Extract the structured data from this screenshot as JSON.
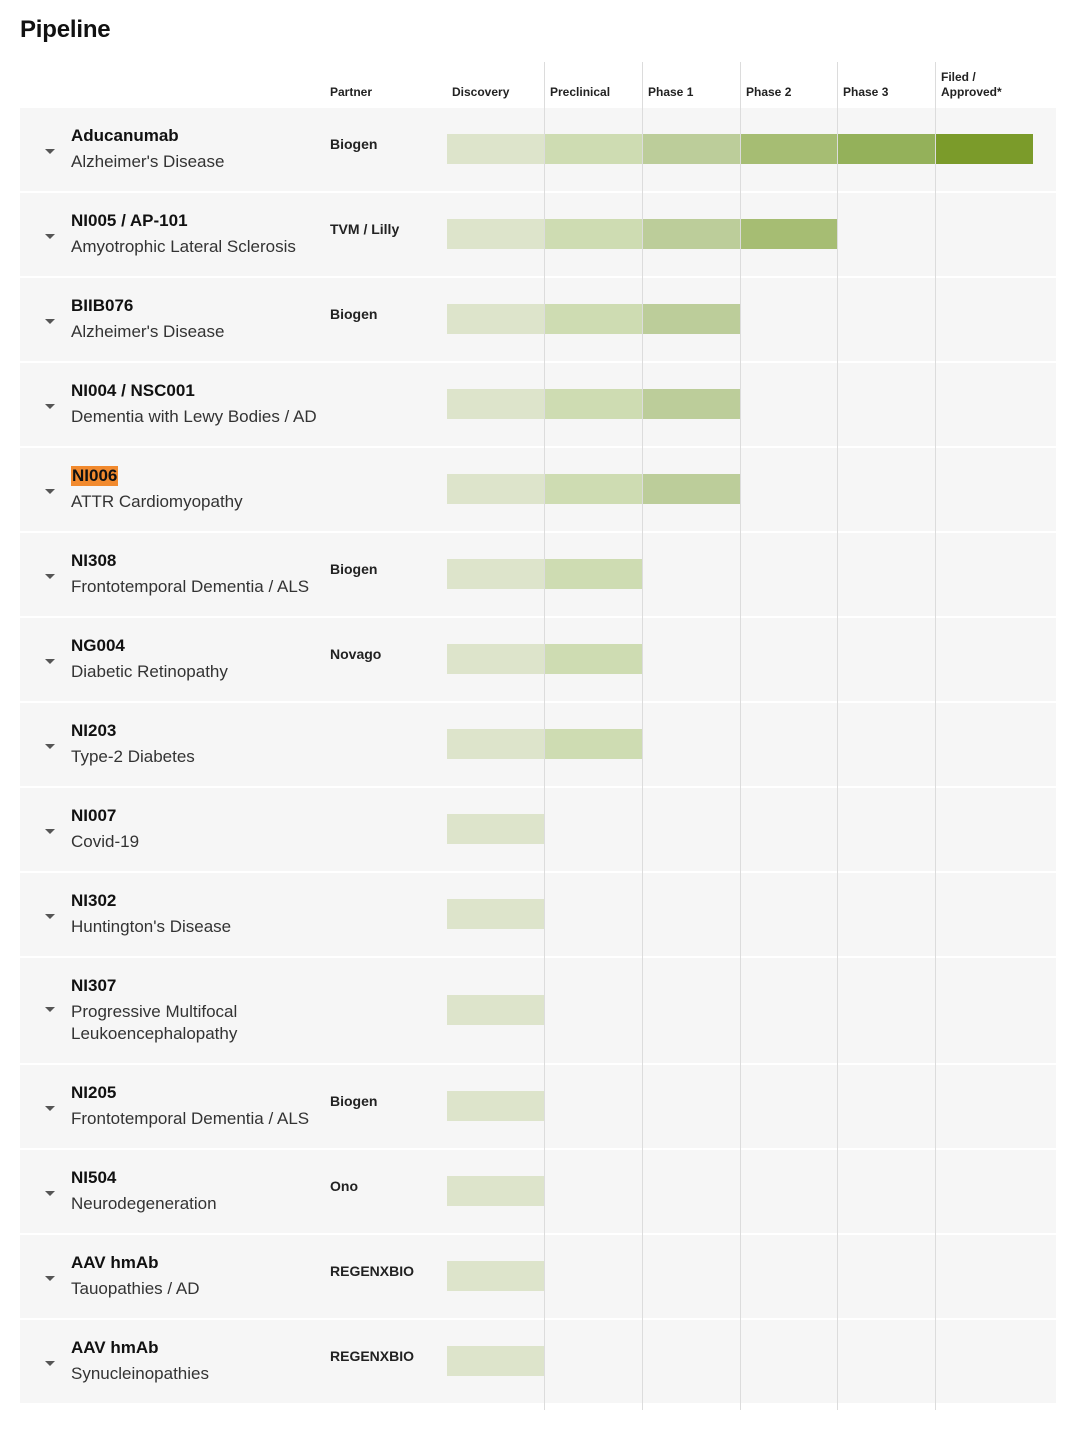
{
  "page": {
    "title": "Pipeline"
  },
  "columns": {
    "partner": "Partner",
    "phases": [
      "Discovery",
      "Preclinical",
      "Phase 1",
      "Phase 2",
      "Phase 3",
      "Filed / Approved*"
    ]
  },
  "phase_colors": [
    "#dde4cb",
    "#cedcb2",
    "#bccd9a",
    "#a6bd73",
    "#94b15a",
    "#7b9b2a"
  ],
  "rows": [
    {
      "name": "Aducanumab",
      "disease": "Alzheimer's Disease",
      "partner": "Biogen",
      "stage": 6
    },
    {
      "name": "NI005 / AP-101",
      "disease": "Amyotrophic Lateral Sclerosis",
      "partner": "TVM / Lilly",
      "stage": 4
    },
    {
      "name": "BIIB076",
      "disease": "Alzheimer's Disease",
      "partner": "Biogen",
      "stage": 3
    },
    {
      "name": "NI004 / NSC001",
      "disease": "Dementia with Lewy Bodies / AD",
      "partner": "",
      "stage": 3
    },
    {
      "name": "NI006",
      "disease": "ATTR Cardiomyopathy",
      "partner": "",
      "stage": 3,
      "highlight": true
    },
    {
      "name": "NI308",
      "disease": "Frontotemporal Dementia / ALS",
      "partner": "Biogen",
      "stage": 2
    },
    {
      "name": "NG004",
      "disease": "Diabetic Retinopathy",
      "partner": "Novago",
      "stage": 2
    },
    {
      "name": "NI203",
      "disease": "Type-2 Diabetes",
      "partner": "",
      "stage": 2
    },
    {
      "name": "NI007",
      "disease": "Covid-19",
      "partner": "",
      "stage": 1
    },
    {
      "name": "NI302",
      "disease": "Huntington's Disease",
      "partner": "",
      "stage": 1
    },
    {
      "name": "NI307",
      "disease": "Progressive Multifocal Leukoencephalopathy",
      "partner": "",
      "stage": 1
    },
    {
      "name": "NI205",
      "disease": "Frontotemporal Dementia / ALS",
      "partner": "Biogen",
      "stage": 1
    },
    {
      "name": "NI504",
      "disease": "Neurodegeneration",
      "partner": "Ono",
      "stage": 1
    },
    {
      "name": "AAV hmAb",
      "disease": "Tauopathies / AD",
      "partner": "REGENXBIO",
      "stage": 1
    },
    {
      "name": "AAV hmAb",
      "disease": "Synucleinopathies",
      "partner": "REGENXBIO",
      "stage": 1
    }
  ]
}
